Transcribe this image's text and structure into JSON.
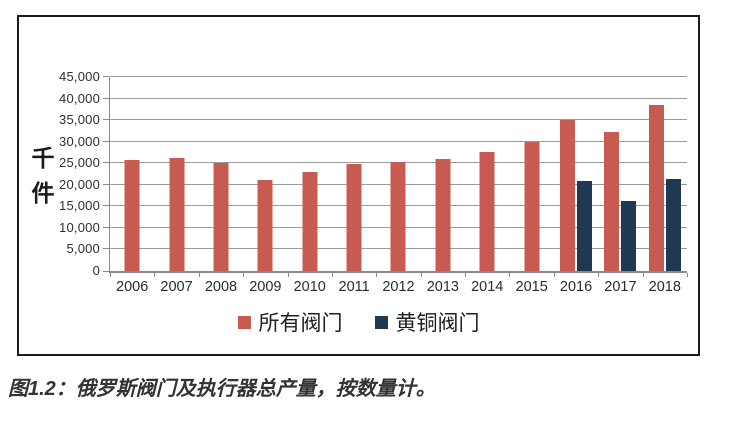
{
  "caption": {
    "text": "图1.2：俄罗斯阀门及执行器总产量，按数量计。"
  },
  "chart_data": {
    "type": "bar",
    "title": "",
    "ylabel": "千件",
    "xlabel": "",
    "categories": [
      "2006",
      "2007",
      "2008",
      "2009",
      "2010",
      "2011",
      "2012",
      "2013",
      "2014",
      "2015",
      "2016",
      "2017",
      "2018"
    ],
    "series": [
      {
        "name": "所有阀门",
        "color": "#c75b52",
        "values": [
          25800,
          26300,
          25000,
          21100,
          23000,
          24900,
          25400,
          25900,
          27700,
          30000,
          35100,
          32300,
          38500
        ]
      },
      {
        "name": "黄铜阀门",
        "color": "#1e3951",
        "values": [
          null,
          null,
          null,
          null,
          null,
          null,
          null,
          null,
          null,
          null,
          20900,
          16300,
          21400
        ]
      }
    ],
    "ylim": [
      0,
      45000
    ],
    "ytick_step": 5000,
    "ytick_labels": [
      "0",
      "5,000",
      "10,000",
      "15,000",
      "20,000",
      "25,000",
      "30,000",
      "35,000",
      "40,000",
      "45,000"
    ],
    "grid": true,
    "legend_position": "bottom",
    "colors": {
      "gridline": "#9b9b9b",
      "axis": "#8a8a8a",
      "border": "#1c1c1c",
      "text": "#2f2f2f"
    }
  }
}
